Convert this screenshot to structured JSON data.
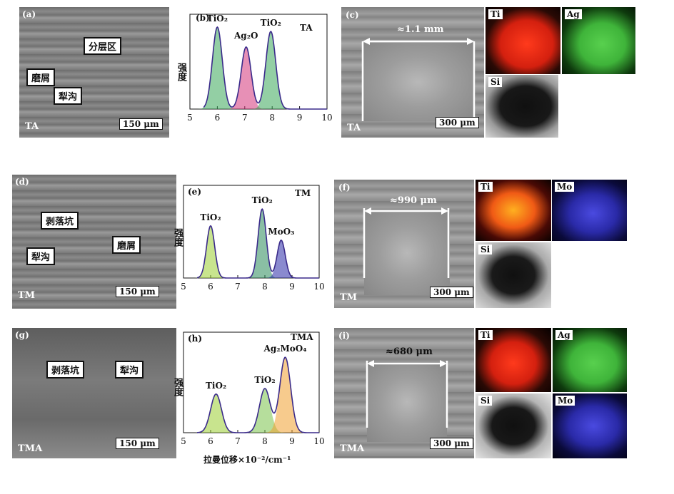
{
  "colors": {
    "ti": "#e8281a",
    "ag": "#3fb43a",
    "mo": "#2a2aa8",
    "si": "#d8d8d8",
    "curve": "#3a2a8a"
  },
  "row1": {
    "a": {
      "label": "(a)",
      "sample": "TA",
      "boxes": [
        "分层区",
        "磨屑",
        "犁沟"
      ],
      "scale": "150 μm"
    },
    "b": {
      "label": "(b)",
      "sample": "TA",
      "ylabel": "强度",
      "peaks": [
        "TiO₂",
        "Ag₂O",
        "TiO₂"
      ]
    },
    "c": {
      "label": "(c)",
      "sample": "TA",
      "width": "≈1.1 mm",
      "scale": "300 μm",
      "maps": [
        "Ti",
        "Ag",
        "Si"
      ]
    }
  },
  "row2": {
    "d": {
      "label": "(d)",
      "sample": "TM",
      "boxes": [
        "剥落坑",
        "犁沟",
        "磨屑"
      ],
      "scale": "150 μm"
    },
    "e": {
      "label": "(e)",
      "sample": "TM",
      "ylabel": "强度",
      "peaks": [
        "TiO₂",
        "TiO₂",
        "MoO₃"
      ]
    },
    "f": {
      "label": "(f)",
      "sample": "TM",
      "width": "≈990 μm",
      "scale": "300 μm",
      "maps": [
        "Ti",
        "Mo",
        "Si"
      ]
    }
  },
  "row3": {
    "g": {
      "label": "(g)",
      "sample": "TMA",
      "boxes": [
        "剥落坑",
        "犁沟"
      ],
      "scale": "150 μm"
    },
    "h": {
      "label": "(h)",
      "sample": "TMA",
      "ylabel": "强度",
      "peaks": [
        "TiO₂",
        "TiO₂",
        "Ag₂MoO₄"
      ],
      "xlabel": "拉曼位移×10⁻²/cm⁻¹"
    },
    "i": {
      "label": "(i)",
      "sample": "TMA",
      "width": "≈680 μm",
      "scale": "300 μm",
      "maps": [
        "Ti",
        "Ag",
        "Si",
        "Mo"
      ]
    }
  },
  "axis": {
    "ticks": [
      "5",
      "6",
      "7",
      "8",
      "9",
      "10"
    ]
  },
  "chart_data": [
    {
      "type": "line",
      "panel": "b",
      "x_range": [
        5,
        10
      ],
      "peaks": [
        {
          "label": "TiO₂",
          "x": 6.0,
          "height": 0.95
        },
        {
          "label": "Ag₂O",
          "x": 7.05,
          "height": 0.72
        },
        {
          "label": "TiO₂",
          "x": 7.95,
          "height": 0.9
        }
      ]
    },
    {
      "type": "line",
      "panel": "e",
      "x_range": [
        5,
        10
      ],
      "peaks": [
        {
          "label": "TiO₂",
          "x": 6.0,
          "height": 0.62
        },
        {
          "label": "TiO₂",
          "x": 7.9,
          "height": 0.82
        },
        {
          "label": "MoO₃",
          "x": 8.6,
          "height": 0.45
        }
      ]
    },
    {
      "type": "line",
      "panel": "h",
      "x_range": [
        5,
        10
      ],
      "peaks": [
        {
          "label": "TiO₂",
          "x": 6.2,
          "height": 0.42
        },
        {
          "label": "TiO₂",
          "x": 8.0,
          "height": 0.48
        },
        {
          "label": "Ag₂MoO₄",
          "x": 8.75,
          "height": 0.82
        }
      ]
    }
  ]
}
